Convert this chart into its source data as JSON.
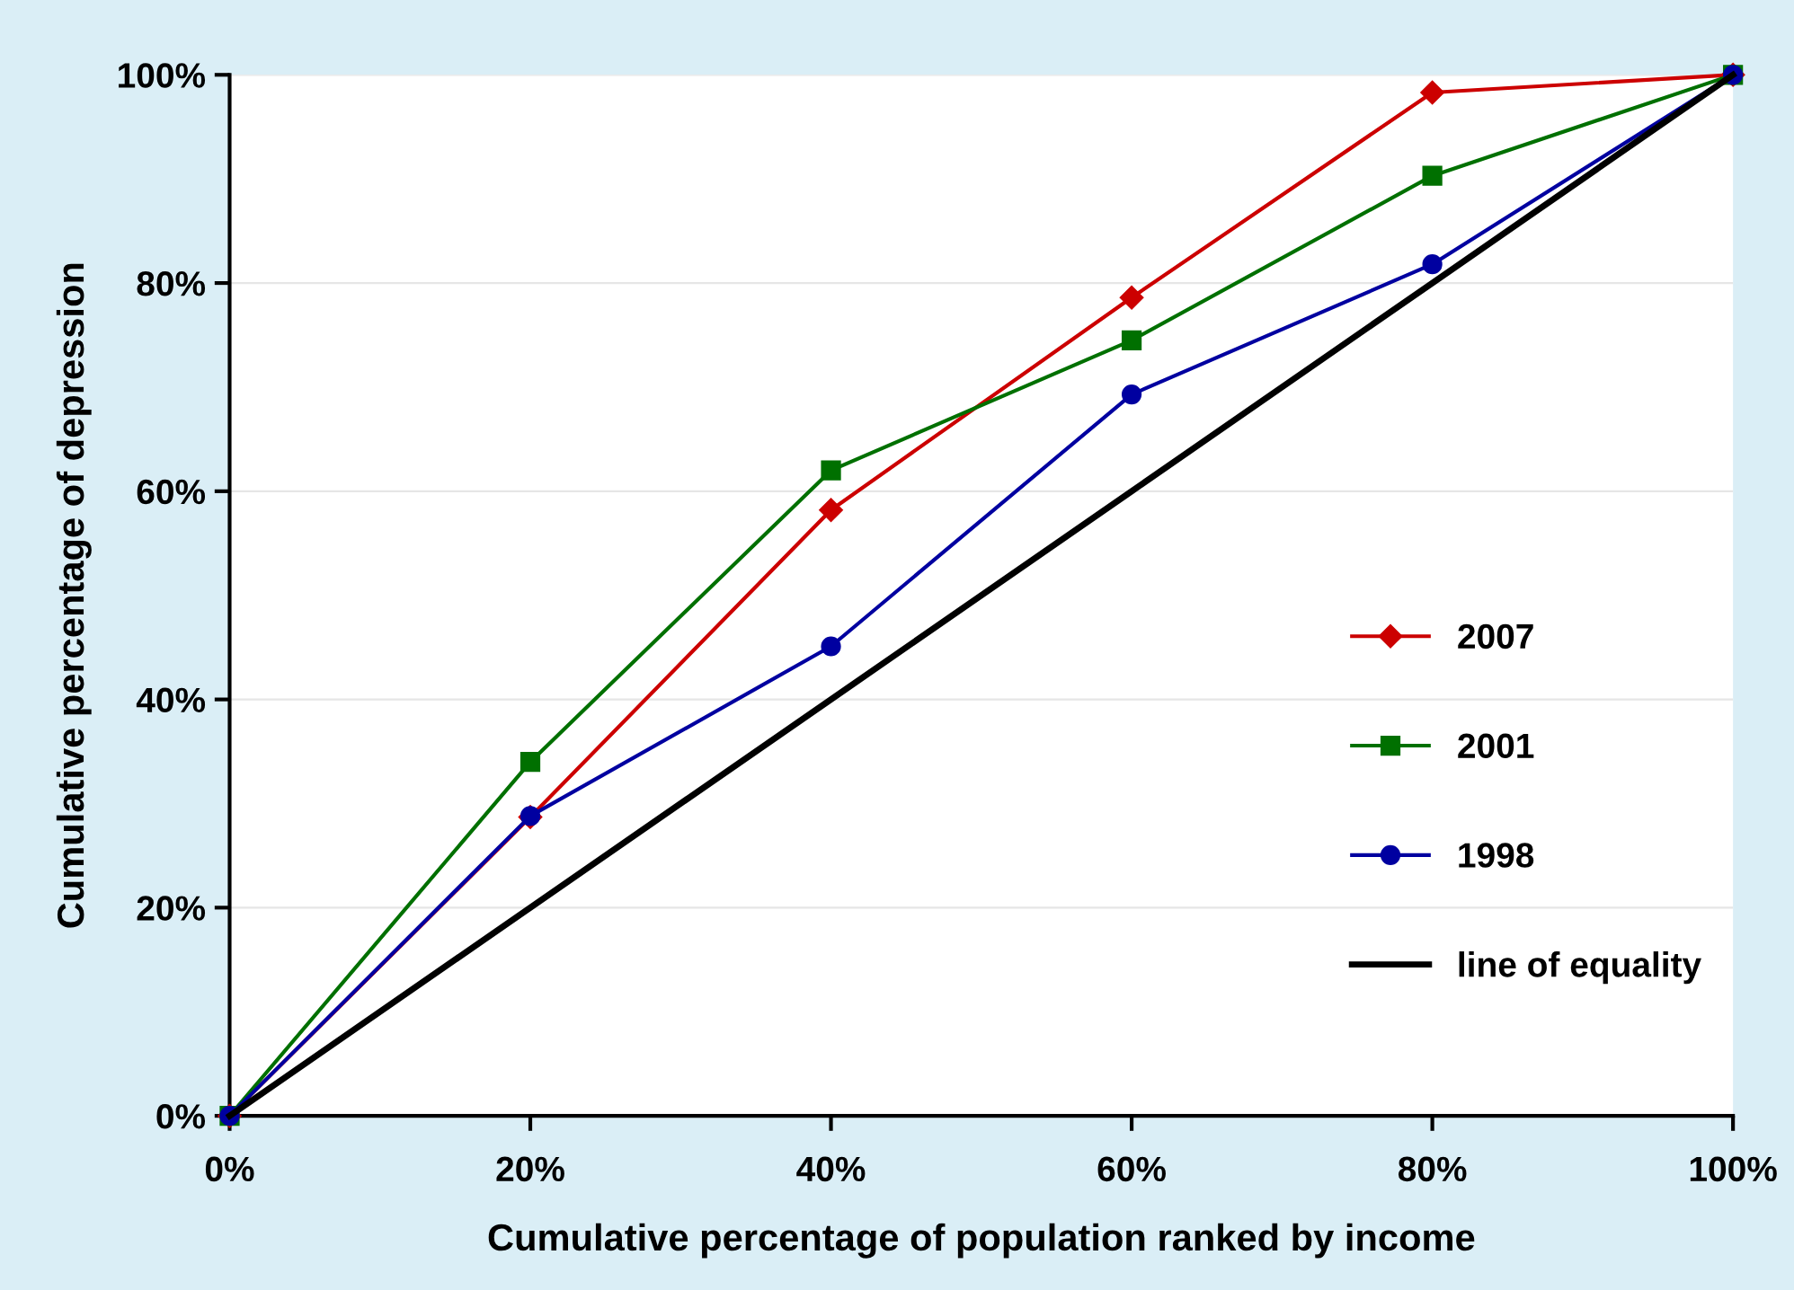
{
  "chart_data": {
    "type": "line",
    "xlabel": "Cumulative percentage of population ranked by income",
    "ylabel": "Cumulative percentage of depression",
    "x": [
      0,
      20,
      40,
      60,
      80,
      100
    ],
    "series": [
      {
        "name": "2007",
        "color": "#cc0000",
        "marker": "diamond",
        "values": [
          0,
          28.7,
          58.2,
          78.6,
          98.3,
          100
        ]
      },
      {
        "name": "2001",
        "color": "#007000",
        "marker": "square",
        "values": [
          0,
          34,
          62,
          74.5,
          90.3,
          100
        ]
      },
      {
        "name": "1998",
        "color": "#0000a0",
        "marker": "circle",
        "values": [
          0,
          28.8,
          45.1,
          69.3,
          81.8,
          100
        ]
      },
      {
        "name": "line of equality",
        "color": "#000000",
        "marker": "none",
        "values": [
          0,
          20,
          40,
          60,
          80,
          100
        ]
      }
    ],
    "xlim": [
      0,
      100
    ],
    "ylim": [
      0,
      100
    ],
    "xticks": [
      {
        "value": 0,
        "label": "0%"
      },
      {
        "value": 20,
        "label": "20%"
      },
      {
        "value": 40,
        "label": "40%"
      },
      {
        "value": 60,
        "label": "60%"
      },
      {
        "value": 80,
        "label": "80%"
      },
      {
        "value": 100,
        "label": "100%"
      }
    ],
    "yticks": [
      {
        "value": 0,
        "label": "0%"
      },
      {
        "value": 20,
        "label": "20%"
      },
      {
        "value": 40,
        "label": "40%"
      },
      {
        "value": 60,
        "label": "60%"
      },
      {
        "value": 80,
        "label": "80%"
      },
      {
        "value": 100,
        "label": "100%"
      }
    ],
    "grid": "y",
    "legend": "right",
    "line_style": "solid"
  }
}
